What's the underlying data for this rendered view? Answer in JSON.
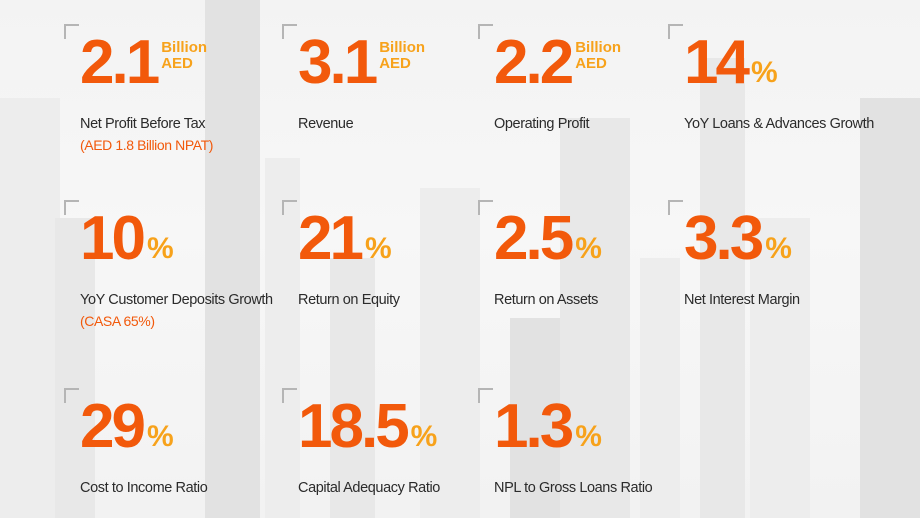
{
  "metrics": [
    {
      "value": "2.1",
      "unit_line1": "Billion",
      "unit_line2": "AED",
      "label": "Net Profit Before Tax",
      "sublabel": "(AED 1.8 Billion NPAT)"
    },
    {
      "value": "3.1",
      "unit_line1": "Billion",
      "unit_line2": "AED",
      "label": "Revenue"
    },
    {
      "value": "2.2",
      "unit_line1": "Billion",
      "unit_line2": "AED",
      "label": "Operating Profit"
    },
    {
      "value": "14",
      "percent": "%",
      "label": "YoY Loans & Advances Growth"
    },
    {
      "value": "10",
      "percent": "%",
      "label": "YoY Customer Deposits Growth",
      "sublabel": "(CASA 65%)"
    },
    {
      "value": "21",
      "percent": "%",
      "label": "Return on Equity"
    },
    {
      "value": "2.5",
      "percent": "%",
      "label": "Return on Assets"
    },
    {
      "value": "3.3",
      "percent": "%",
      "label": "Net Interest Margin"
    },
    {
      "value": "29",
      "percent": "%",
      "label": "Cost to Income Ratio"
    },
    {
      "value": "18.5",
      "percent": "%",
      "label": "Capital Adequacy Ratio"
    },
    {
      "value": "1.3",
      "percent": "%",
      "label": "NPL to Gross Loans Ratio"
    }
  ],
  "colors": {
    "value": "#f2590b",
    "unit": "#f7a21b",
    "label": "#2b2b2b",
    "corner": "#b5b5b5"
  }
}
